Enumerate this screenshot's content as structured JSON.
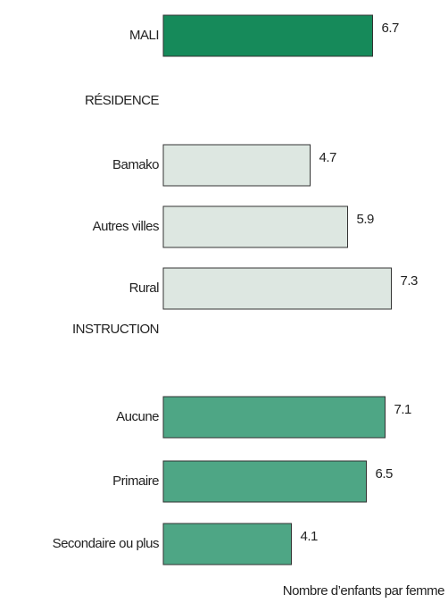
{
  "chart_data": {
    "type": "bar",
    "categories": [
      "MALI",
      "RÉSIDENCE",
      "Bamako",
      "Autres villes",
      "Rural",
      "INSTRUCTION",
      "Aucune",
      "Primaire",
      "Secondaire ou plus"
    ],
    "values": [
      6.7,
      null,
      4.7,
      5.9,
      7.3,
      null,
      7.1,
      6.5,
      4.1
    ],
    "colors": [
      "#168a5a",
      null,
      "#dde7e1",
      "#dde7e1",
      "#dde7e1",
      null,
      "#4ea685",
      "#4ea685",
      "#4ea685"
    ],
    "xlabel": "Nombre d’enfants par femme"
  }
}
